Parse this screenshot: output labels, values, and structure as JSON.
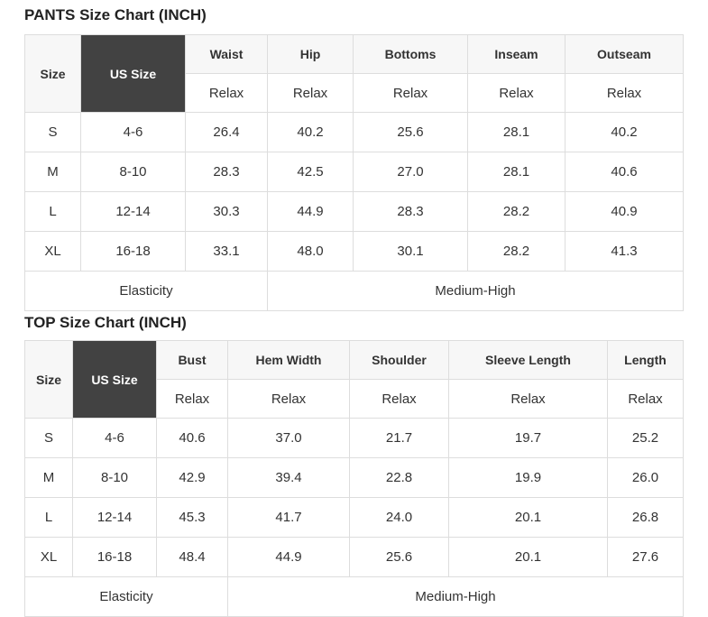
{
  "colors": {
    "header_bg": "#f7f7f7",
    "dark_cell_bg": "#424242",
    "dark_cell_text": "#ffffff",
    "border": "#dddddd",
    "text": "#333333"
  },
  "chart_data": [
    {
      "type": "table",
      "title": "PANTS Size Chart (INCH)",
      "columns": [
        "Size",
        "US Size",
        "Waist",
        "Hip",
        "Bottoms",
        "Inseam",
        "Outseam"
      ],
      "fit_row": [
        "Relax",
        "Relax",
        "Relax",
        "Relax",
        "Relax"
      ],
      "rows": [
        {
          "size": "S",
          "us_size": "4-6",
          "values": [
            "26.4",
            "40.2",
            "25.6",
            "28.1",
            "40.2"
          ]
        },
        {
          "size": "M",
          "us_size": "8-10",
          "values": [
            "28.3",
            "42.5",
            "27.0",
            "28.1",
            "40.6"
          ]
        },
        {
          "size": "L",
          "us_size": "12-14",
          "values": [
            "30.3",
            "44.9",
            "28.3",
            "28.2",
            "40.9"
          ]
        },
        {
          "size": "XL",
          "us_size": "16-18",
          "values": [
            "33.1",
            "48.0",
            "30.1",
            "28.2",
            "41.3"
          ]
        }
      ],
      "footer": {
        "label": "Elasticity",
        "value": "Medium-High"
      }
    },
    {
      "type": "table",
      "title": "TOP Size Chart (INCH)",
      "columns": [
        "Size",
        "US Size",
        "Bust",
        "Hem Width",
        "Shoulder",
        "Sleeve Length",
        "Length"
      ],
      "fit_row": [
        "Relax",
        "Relax",
        "Relax",
        "Relax",
        "Relax"
      ],
      "rows": [
        {
          "size": "S",
          "us_size": "4-6",
          "values": [
            "40.6",
            "37.0",
            "21.7",
            "19.7",
            "25.2"
          ]
        },
        {
          "size": "M",
          "us_size": "8-10",
          "values": [
            "42.9",
            "39.4",
            "22.8",
            "19.9",
            "26.0"
          ]
        },
        {
          "size": "L",
          "us_size": "12-14",
          "values": [
            "45.3",
            "41.7",
            "24.0",
            "20.1",
            "26.8"
          ]
        },
        {
          "size": "XL",
          "us_size": "16-18",
          "values": [
            "48.4",
            "44.9",
            "25.6",
            "20.1",
            "27.6"
          ]
        }
      ],
      "footer": {
        "label": "Elasticity",
        "value": "Medium-High"
      }
    }
  ]
}
